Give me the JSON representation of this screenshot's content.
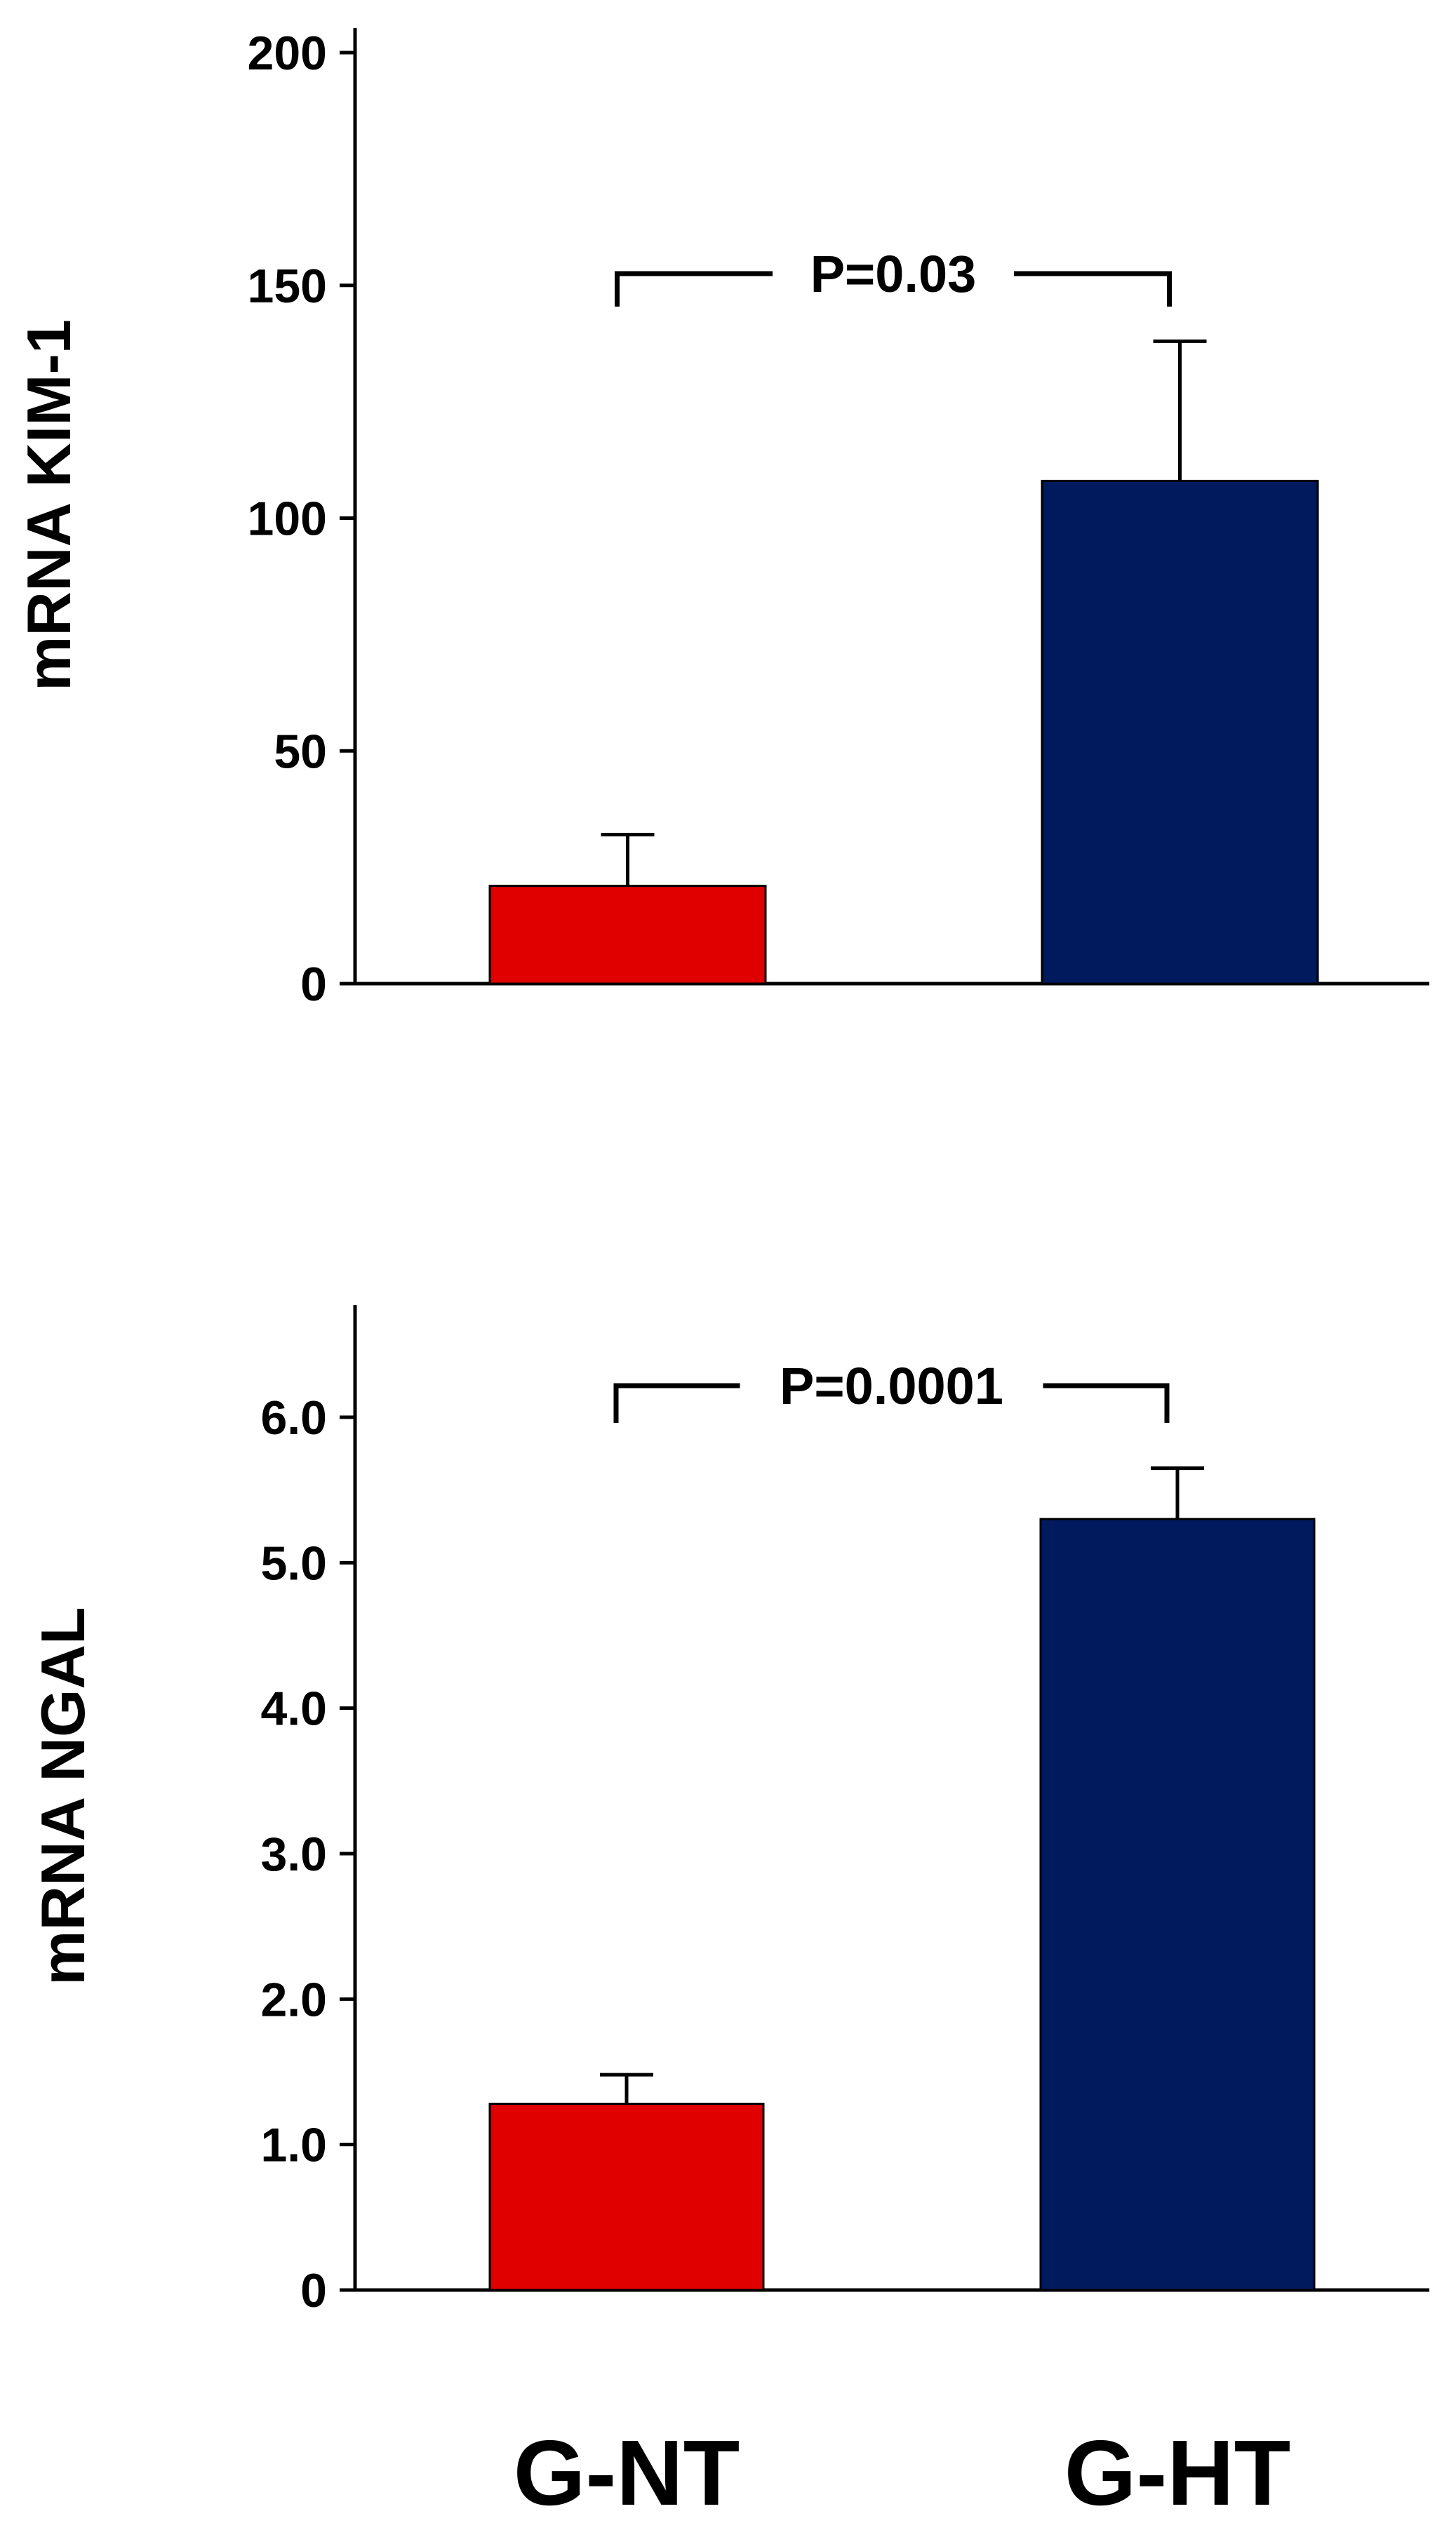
{
  "chart_data": [
    {
      "type": "bar",
      "categories": [
        "G-NT",
        "G-HT"
      ],
      "values": [
        21,
        108
      ],
      "errors": [
        11,
        30
      ],
      "ylabel": "mRNA KIM-1",
      "ylim": [
        0,
        200
      ],
      "yticks": [
        "0",
        "50",
        "100",
        "150",
        "200"
      ],
      "ytick_values": [
        0,
        50,
        100,
        150,
        200
      ],
      "significance": {
        "label": "P=0.03",
        "between": [
          0,
          1
        ]
      },
      "colors": [
        "#e00000",
        "#001a5e"
      ],
      "show_category_labels": false
    },
    {
      "type": "bar",
      "categories": [
        "G-NT",
        "G-HT"
      ],
      "values": [
        1.28,
        5.3
      ],
      "errors": [
        0.2,
        0.35
      ],
      "ylabel": "mRNA NGAL",
      "ylim": [
        0,
        6.7
      ],
      "yticks": [
        "0",
        "1.0",
        "2.0",
        "3.0",
        "4.0",
        "5.0",
        "6.0"
      ],
      "ytick_values": [
        0,
        1,
        2,
        3,
        4,
        5,
        6
      ],
      "significance": {
        "label": "P=0.0001",
        "between": [
          0,
          1
        ]
      },
      "colors": [
        "#e00000",
        "#001a5e"
      ],
      "show_category_labels": true
    }
  ]
}
